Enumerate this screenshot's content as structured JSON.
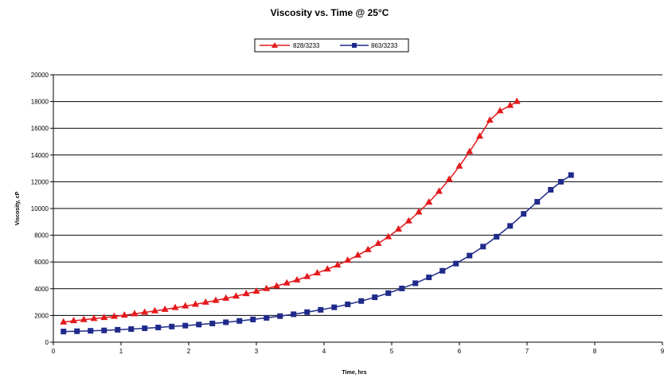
{
  "chart_data": {
    "type": "line",
    "title": "Viscosity vs. Time @ 25°C",
    "xlabel": "Time, hrs",
    "ylabel": "Viscosity, cP",
    "xlim": [
      0,
      9
    ],
    "ylim": [
      0,
      20000
    ],
    "xticks": [
      0,
      1,
      2,
      3,
      4,
      5,
      6,
      7,
      8,
      9
    ],
    "yticks": [
      0,
      2000,
      4000,
      6000,
      8000,
      10000,
      12000,
      14000,
      16000,
      18000,
      20000
    ],
    "grid": "horizontal",
    "legend_position": "top-center",
    "series": [
      {
        "name": "828/3233",
        "color": "#e31a1c",
        "marker": "triangle",
        "x": [
          0.15,
          0.3,
          0.45,
          0.6,
          0.75,
          0.9,
          1.05,
          1.2,
          1.35,
          1.5,
          1.65,
          1.8,
          1.95,
          2.1,
          2.25,
          2.4,
          2.55,
          2.7,
          2.85,
          3.0,
          3.15,
          3.3,
          3.45,
          3.6,
          3.75,
          3.9,
          4.05,
          4.2,
          4.35,
          4.5,
          4.65,
          4.8,
          4.95,
          5.1,
          5.25,
          5.4,
          5.55,
          5.7,
          5.85,
          6.0,
          6.15,
          6.3,
          6.45,
          6.6,
          6.75,
          6.85
        ],
        "y": [
          1500,
          1600,
          1680,
          1760,
          1840,
          1930,
          2020,
          2120,
          2230,
          2340,
          2450,
          2580,
          2700,
          2830,
          2980,
          3120,
          3280,
          3440,
          3620,
          3800,
          4000,
          4200,
          4420,
          4650,
          4900,
          5170,
          5460,
          5770,
          6120,
          6500,
          6920,
          7380,
          7880,
          8450,
          9060,
          9730,
          10470,
          11280,
          12180,
          13160,
          14250,
          15400,
          16600,
          17300,
          17700,
          18000
        ]
      },
      {
        "name": "863/3233",
        "color": "#1f2a8a",
        "marker": "square",
        "x": [
          0.15,
          0.35,
          0.55,
          0.75,
          0.95,
          1.15,
          1.35,
          1.55,
          1.75,
          1.95,
          2.15,
          2.35,
          2.55,
          2.75,
          2.95,
          3.15,
          3.35,
          3.55,
          3.75,
          3.95,
          4.15,
          4.35,
          4.55,
          4.75,
          4.95,
          5.15,
          5.35,
          5.55,
          5.75,
          5.95,
          6.15,
          6.35,
          6.55,
          6.75,
          6.95,
          7.15,
          7.35,
          7.5,
          7.65
        ],
        "y": [
          800,
          820,
          850,
          880,
          930,
          980,
          1040,
          1100,
          1170,
          1240,
          1320,
          1400,
          1490,
          1590,
          1700,
          1820,
          1950,
          2090,
          2250,
          2420,
          2610,
          2830,
          3080,
          3360,
          3670,
          4020,
          4410,
          4850,
          5340,
          5880,
          6480,
          7150,
          7890,
          8700,
          9600,
          10500,
          11400,
          12000,
          12500
        ]
      }
    ]
  }
}
